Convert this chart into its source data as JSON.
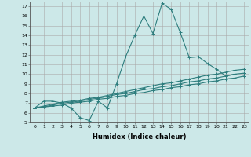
{
  "xlabel": "Humidex (Indice chaleur)",
  "background_color": "#cce8e8",
  "grid_color": "#aaaaaa",
  "line_color": "#2d7d7d",
  "xlim": [
    -0.5,
    23.5
  ],
  "ylim": [
    5,
    17.5
  ],
  "xticks": [
    0,
    1,
    2,
    3,
    4,
    5,
    6,
    7,
    8,
    9,
    10,
    11,
    12,
    13,
    14,
    15,
    16,
    17,
    18,
    19,
    20,
    21,
    22,
    23
  ],
  "yticks": [
    5,
    6,
    7,
    8,
    9,
    10,
    11,
    12,
    13,
    14,
    15,
    16,
    17
  ],
  "series": [
    {
      "x": [
        0,
        1,
        2,
        3,
        4,
        5,
        6,
        7,
        8,
        9,
        10,
        11,
        12,
        13,
        14,
        15,
        16,
        17,
        18,
        19,
        20,
        21,
        22
      ],
      "y": [
        6.5,
        7.2,
        7.2,
        7.0,
        6.5,
        5.5,
        5.2,
        7.2,
        6.5,
        9.0,
        11.8,
        14.0,
        16.0,
        14.2,
        17.3,
        16.7,
        14.3,
        11.7,
        11.8,
        11.1,
        10.5,
        9.8,
        10.0
      ]
    },
    {
      "x": [
        0,
        1,
        2,
        3,
        4,
        5,
        6,
        7,
        8,
        9,
        10,
        11,
        12,
        13,
        14,
        15,
        16,
        17,
        18,
        19,
        20,
        21,
        22,
        23
      ],
      "y": [
        6.5,
        6.7,
        6.9,
        7.1,
        7.2,
        7.3,
        7.5,
        7.6,
        7.8,
        8.0,
        8.2,
        8.4,
        8.6,
        8.8,
        9.0,
        9.1,
        9.3,
        9.5,
        9.7,
        9.9,
        10.0,
        10.2,
        10.4,
        10.5
      ]
    },
    {
      "x": [
        0,
        1,
        2,
        3,
        4,
        5,
        6,
        7,
        8,
        9,
        10,
        11,
        12,
        13,
        14,
        15,
        16,
        17,
        18,
        19,
        20,
        21,
        22,
        23
      ],
      "y": [
        6.5,
        6.6,
        6.8,
        7.0,
        7.1,
        7.2,
        7.4,
        7.5,
        7.7,
        7.9,
        8.0,
        8.2,
        8.4,
        8.5,
        8.7,
        8.8,
        9.0,
        9.2,
        9.3,
        9.5,
        9.6,
        9.8,
        10.0,
        10.1
      ]
    },
    {
      "x": [
        0,
        1,
        2,
        3,
        4,
        5,
        6,
        7,
        8,
        9,
        10,
        11,
        12,
        13,
        14,
        15,
        16,
        17,
        18,
        19,
        20,
        21,
        22,
        23
      ],
      "y": [
        6.5,
        6.6,
        6.7,
        6.8,
        7.0,
        7.1,
        7.2,
        7.4,
        7.5,
        7.7,
        7.8,
        8.0,
        8.1,
        8.3,
        8.4,
        8.6,
        8.7,
        8.9,
        9.0,
        9.2,
        9.3,
        9.5,
        9.6,
        9.8
      ]
    }
  ],
  "marker": "+",
  "marker_size": 3,
  "line_width": 0.8
}
